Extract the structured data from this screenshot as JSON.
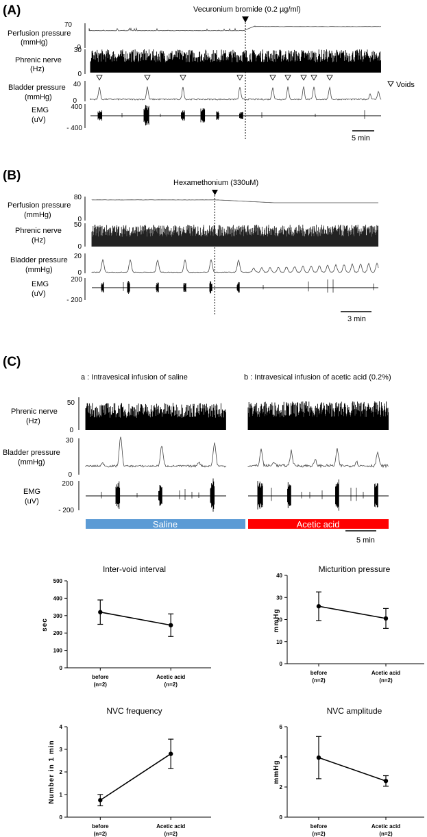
{
  "panel_a": {
    "letter": "(A)",
    "drug_label": "Vecuronium bromide (0.2 µg/ml)",
    "voids_label": "Voids",
    "scale_label": "5 min",
    "rows": [
      {
        "name": "Perfusion pressure",
        "unit": "(mmHg)",
        "top": "70",
        "bottom": "0"
      },
      {
        "name": "Phrenic nerve",
        "unit": "(Hz)",
        "top": "30",
        "bottom": "0"
      },
      {
        "name": "Bladder pressure",
        "unit": "(mmHg)",
        "top": "40",
        "bottom": "0"
      },
      {
        "name": "EMG",
        "unit": "(uV)",
        "top": "400",
        "bottom": "- 400"
      }
    ]
  },
  "panel_b": {
    "letter": "(B)",
    "drug_label": "Hexamethonium (330uM)",
    "scale_label": "3 min",
    "rows": [
      {
        "name": "Perfusion pressure",
        "unit": "(mmHg)",
        "top": "80",
        "bottom": "0"
      },
      {
        "name": "Phrenic nerve",
        "unit": "(Hz)",
        "top": "50",
        "bottom": "0"
      },
      {
        "name": "Bladder pressure",
        "unit": "(mmHg)",
        "top": "20",
        "bottom": "0"
      },
      {
        "name": "EMG",
        "unit": "(uV)",
        "top": "200",
        "bottom": "- 200"
      }
    ]
  },
  "panel_c": {
    "letter": "(C)",
    "sub_a": "a : Intravesical infusion of saline",
    "sub_b": "b : Intravesical infusion of acetic acid (0.2%)",
    "scale_label": "5 min",
    "bar_saline": "Saline",
    "bar_acid": "Acetic acid",
    "colors": {
      "saline": "#5b9bd5",
      "acid": "#ff0000"
    },
    "rows": [
      {
        "name": "Phrenic nerve",
        "unit": "(Hz)",
        "top": "50",
        "bottom": "0"
      },
      {
        "name": "Bladder pressure",
        "unit": "(mmHg)",
        "top": "30",
        "bottom": "0"
      },
      {
        "name": "EMG",
        "unit": "(uV)",
        "top": "200",
        "bottom": "- 200"
      }
    ]
  },
  "chart_data": [
    {
      "type": "line",
      "title": "Inter-void interval",
      "ylabel": "sec",
      "categories": [
        "before",
        "Acetic acid"
      ],
      "n_labels": [
        "(n=2)",
        "(n=2)"
      ],
      "values": [
        320,
        245
      ],
      "errors": [
        70,
        65
      ],
      "ylim": [
        0,
        500
      ],
      "yticks": [
        "0",
        "100",
        "200",
        "300",
        "400",
        "500"
      ]
    },
    {
      "type": "line",
      "title": "Micturition pressure",
      "ylabel": "mmHg",
      "categories": [
        "before",
        "Acetic acid"
      ],
      "n_labels": [
        "(n=2)",
        "(n=2)"
      ],
      "values": [
        26,
        20.5
      ],
      "errors": [
        6.5,
        4.5
      ],
      "ylim": [
        0,
        40
      ],
      "yticks": [
        "0",
        "10",
        "20",
        "30",
        "40"
      ]
    },
    {
      "type": "line",
      "title": "NVC frequency",
      "ylabel": "Number in 1 min",
      "categories": [
        "before",
        "Acetic acid"
      ],
      "n_labels": [
        "(n=2)",
        "(n=2)"
      ],
      "values": [
        0.75,
        2.8
      ],
      "errors": [
        0.25,
        0.65
      ],
      "ylim": [
        0,
        4
      ],
      "yticks": [
        "0",
        "1",
        "2",
        "3",
        "4"
      ]
    },
    {
      "type": "line",
      "title": "NVC amplitude",
      "ylabel": "mmHg",
      "categories": [
        "before",
        "Acetic acid"
      ],
      "n_labels": [
        "(n=2)",
        "(n=2)"
      ],
      "values": [
        3.95,
        2.4
      ],
      "errors": [
        1.4,
        0.35
      ],
      "ylim": [
        0,
        6
      ],
      "yticks": [
        "0",
        "2",
        "4",
        "6"
      ]
    }
  ]
}
